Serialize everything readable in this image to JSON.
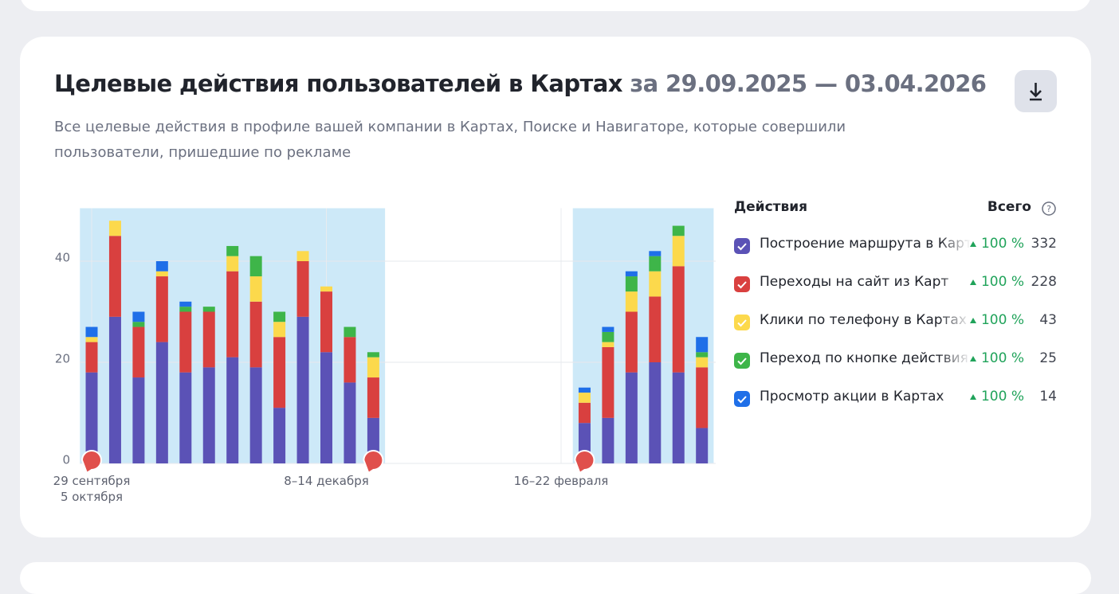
{
  "header": {
    "title": "Целевые действия пользователей в Картах",
    "period": "за 29.09.2025 — 03.04.2026",
    "subtitle": "Все целевые действия в профиле вашей компании в Картах, Поиске и Навигаторе, которые совершили пользователи, пришедшие по рекламе"
  },
  "chart_data": {
    "type": "stacked-bar",
    "categories": [
      "29 сентября\n5 октября",
      null,
      null,
      null,
      null,
      null,
      null,
      null,
      null,
      null,
      "8–14 декабря",
      null,
      null,
      null,
      null,
      null,
      null,
      null,
      null,
      null,
      "16–22 февраля",
      null,
      null,
      null,
      null,
      null,
      null
    ],
    "series": [
      {
        "name": "Построение маршрута в Карт",
        "color": "#5b52b6",
        "total": 332,
        "values": [
          18,
          29,
          17,
          24,
          18,
          19,
          21,
          19,
          11,
          29,
          22,
          16,
          9,
          null,
          null,
          null,
          null,
          null,
          null,
          null,
          null,
          8,
          9,
          18,
          20,
          18,
          7
        ]
      },
      {
        "name": "Переходы на сайт из Карт",
        "color": "#d9403f",
        "total": 228,
        "values": [
          6,
          16,
          10,
          13,
          12,
          11,
          17,
          13,
          14,
          11,
          12,
          9,
          8,
          null,
          null,
          null,
          null,
          null,
          null,
          null,
          null,
          4,
          14,
          12,
          13,
          21,
          12
        ]
      },
      {
        "name": "Клики по телефону в Картах",
        "color": "#fcd94c",
        "total": 43,
        "values": [
          1,
          3,
          0,
          1,
          0,
          0,
          3,
          5,
          3,
          2,
          1,
          0,
          4,
          null,
          null,
          null,
          null,
          null,
          null,
          null,
          null,
          2,
          1,
          4,
          5,
          6,
          2
        ]
      },
      {
        "name": "Переход по кнопке действия и",
        "color": "#3eb549",
        "total": 25,
        "values": [
          0,
          0,
          1,
          0,
          1,
          1,
          2,
          4,
          2,
          0,
          0,
          2,
          1,
          null,
          null,
          null,
          null,
          null,
          null,
          null,
          null,
          0,
          2,
          3,
          3,
          2,
          1
        ]
      },
      {
        "name": "Просмотр акции в Картах",
        "color": "#1f6fe8",
        "total": 14,
        "values": [
          2,
          0,
          2,
          2,
          1,
          0,
          0,
          0,
          0,
          0,
          0,
          0,
          0,
          null,
          null,
          null,
          null,
          null,
          null,
          null,
          null,
          1,
          1,
          1,
          1,
          0,
          3
        ]
      }
    ],
    "ylim": [
      0,
      50
    ],
    "yticks": [
      0,
      20,
      40
    ],
    "grid": true
  },
  "legend": {
    "title": "Действия",
    "total_header": "Всего",
    "changes": [
      "100 %",
      "100 %",
      "100 %",
      "100 %",
      "100 %"
    ]
  }
}
